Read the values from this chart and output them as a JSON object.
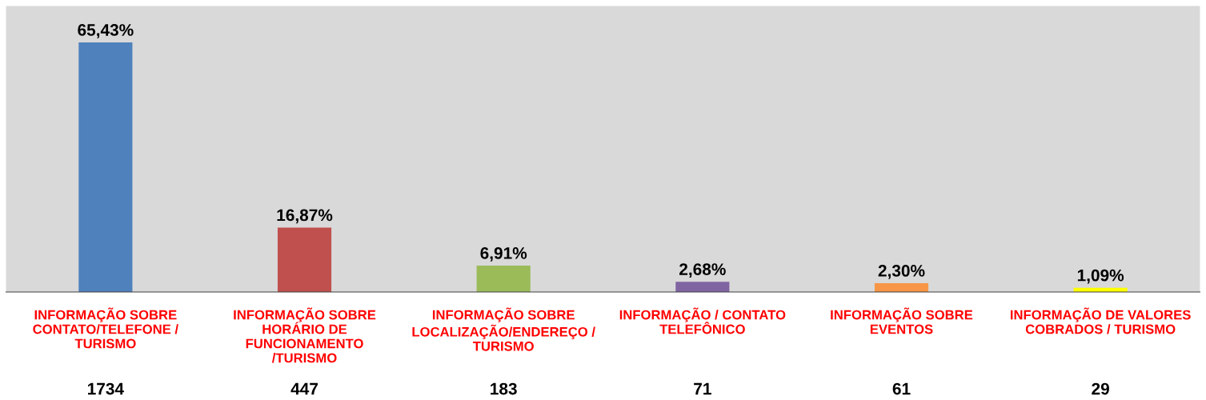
{
  "chart_data": {
    "type": "bar",
    "categories": [
      "INFORMAÇÃO SOBRE\nCONTATO/TELEFONE /\nTURISMO",
      "INFORMAÇÃO SOBRE\nHORÁRIO DE\nFUNCIONAMENTO\n/TURISMO",
      "INFORMAÇÃO SOBRE\nLOCALIZAÇÃO/ENDEREÇO /\nTURISMO",
      "INFORMAÇÃO / CONTATO\nTELEFÔNICO",
      "INFORMAÇÃO SOBRE\nEVENTOS",
      "INFORMAÇÃO DE VALORES\nCOBRADOS / TURISMO"
    ],
    "values": [
      65.43,
      16.87,
      6.91,
      2.68,
      2.3,
      1.09
    ],
    "value_labels": [
      "65,43%",
      "16,87%",
      "6,91%",
      "2,68%",
      "2,30%",
      "1,09%"
    ],
    "colors": [
      "#4f81bd",
      "#c0504d",
      "#9bbb59",
      "#8064a2",
      "#f79646",
      "#ffff00"
    ],
    "annotations": [
      "1734",
      "447",
      "183",
      "71",
      "61",
      "29"
    ],
    "ylim": [
      0,
      75
    ],
    "tick_labels": "x",
    "grid": false,
    "legend": false
  }
}
